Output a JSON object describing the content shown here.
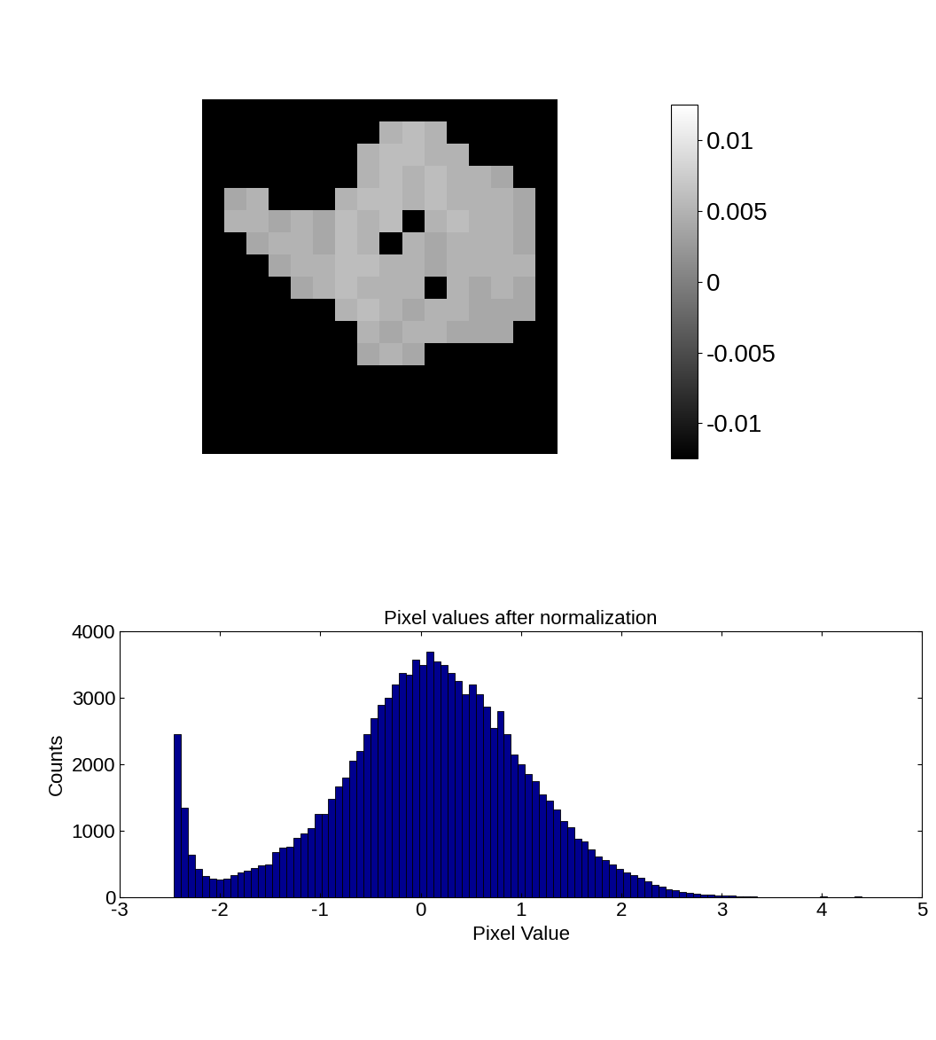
{
  "chart_data": [
    {
      "type": "heatmap",
      "cells": [
        [
          -0.0125,
          -0.0125,
          -0.0125,
          -0.0125,
          -0.0125,
          -0.0125,
          -0.0125,
          -0.0125,
          -0.0125,
          -0.0125,
          -0.0125,
          -0.0125,
          -0.0125,
          -0.0125,
          -0.0125,
          -0.0125
        ],
        [
          -0.0125,
          -0.0125,
          -0.0125,
          -0.0125,
          -0.0125,
          -0.0125,
          -0.0125,
          -0.0125,
          0.005,
          0.006,
          0.005,
          -0.0125,
          -0.0125,
          -0.0125,
          -0.0125,
          -0.0125
        ],
        [
          -0.0125,
          -0.0125,
          -0.0125,
          -0.0125,
          -0.0125,
          -0.0125,
          -0.0125,
          0.005,
          0.006,
          0.006,
          0.005,
          0.005,
          -0.0125,
          -0.0125,
          -0.0125,
          -0.0125
        ],
        [
          -0.0125,
          -0.0125,
          -0.0125,
          -0.0125,
          -0.0125,
          -0.0125,
          -0.0125,
          0.005,
          0.006,
          0.005,
          0.006,
          0.005,
          0.005,
          0.004,
          -0.0125,
          -0.0125
        ],
        [
          -0.0125,
          0.004,
          0.005,
          -0.0125,
          -0.0125,
          -0.0125,
          0.005,
          0.006,
          0.006,
          0.005,
          0.006,
          0.005,
          0.005,
          0.005,
          0.004,
          -0.0125
        ],
        [
          -0.0125,
          0.005,
          0.005,
          0.004,
          0.005,
          0.004,
          0.006,
          0.005,
          0.006,
          -0.0125,
          0.005,
          0.006,
          0.005,
          0.005,
          0.004,
          -0.0125
        ],
        [
          -0.0125,
          -0.0125,
          0.004,
          0.005,
          0.005,
          0.004,
          0.006,
          0.005,
          -0.0125,
          0.005,
          0.004,
          0.005,
          0.005,
          0.005,
          0.004,
          -0.0125
        ],
        [
          -0.0125,
          -0.0125,
          -0.0125,
          0.004,
          0.005,
          0.005,
          0.006,
          0.006,
          0.005,
          0.005,
          0.004,
          0.005,
          0.005,
          0.005,
          0.005,
          -0.0125
        ],
        [
          -0.0125,
          -0.0125,
          -0.0125,
          -0.0125,
          0.004,
          0.005,
          0.006,
          0.005,
          0.005,
          0.005,
          -0.0125,
          0.005,
          0.004,
          0.005,
          0.004,
          -0.0125
        ],
        [
          -0.0125,
          -0.0125,
          -0.0125,
          -0.0125,
          -0.0125,
          -0.0125,
          0.005,
          0.006,
          0.005,
          0.004,
          0.005,
          0.005,
          0.004,
          0.004,
          0.004,
          -0.0125
        ],
        [
          -0.0125,
          -0.0125,
          -0.0125,
          -0.0125,
          -0.0125,
          -0.0125,
          -0.0125,
          0.005,
          0.004,
          0.005,
          0.005,
          0.004,
          0.004,
          0.004,
          -0.0125,
          -0.0125
        ],
        [
          -0.0125,
          -0.0125,
          -0.0125,
          -0.0125,
          -0.0125,
          -0.0125,
          -0.0125,
          0.004,
          0.005,
          0.004,
          -0.0125,
          -0.0125,
          -0.0125,
          -0.0125,
          -0.0125,
          -0.0125
        ],
        [
          -0.0125,
          -0.0125,
          -0.0125,
          -0.0125,
          -0.0125,
          -0.0125,
          -0.0125,
          -0.0125,
          -0.0125,
          -0.0125,
          -0.0125,
          -0.0125,
          -0.0125,
          -0.0125,
          -0.0125,
          -0.0125
        ],
        [
          -0.0125,
          -0.0125,
          -0.0125,
          -0.0125,
          -0.0125,
          -0.0125,
          -0.0125,
          -0.0125,
          -0.0125,
          -0.0125,
          -0.0125,
          -0.0125,
          -0.0125,
          -0.0125,
          -0.0125,
          -0.0125
        ],
        [
          -0.0125,
          -0.0125,
          -0.0125,
          -0.0125,
          -0.0125,
          -0.0125,
          -0.0125,
          -0.0125,
          -0.0125,
          -0.0125,
          -0.0125,
          -0.0125,
          -0.0125,
          -0.0125,
          -0.0125,
          -0.0125
        ],
        [
          -0.0125,
          -0.0125,
          -0.0125,
          -0.0125,
          -0.0125,
          -0.0125,
          -0.0125,
          -0.0125,
          -0.0125,
          -0.0125,
          -0.0125,
          -0.0125,
          -0.0125,
          -0.0125,
          -0.0125,
          -0.0125
        ]
      ],
      "colorbar_lim": [
        -0.0125,
        0.0125
      ],
      "colorbar_ticks": [
        -0.01,
        -0.005,
        0,
        0.005,
        0.01
      ],
      "tick_labels": false
    },
    {
      "type": "histogram",
      "title": "Pixel values after normalization",
      "x_label": "Pixel Value",
      "y_label": "Counts",
      "bins": [
        -2.46,
        -2.39,
        -2.32,
        -2.25,
        -2.18,
        -2.11,
        -2.04,
        -1.97,
        -1.9,
        -1.83,
        -1.76,
        -1.69,
        -1.62,
        -1.55,
        -1.48,
        -1.41,
        -1.34,
        -1.27,
        -1.2,
        -1.13,
        -1.06,
        -0.99,
        -0.92,
        -0.85,
        -0.78,
        -0.71,
        -0.64,
        -0.57,
        -0.5,
        -0.43,
        -0.36,
        -0.29,
        -0.22,
        -0.15,
        -0.08,
        -0.01,
        0.06,
        0.13,
        0.2,
        0.27,
        0.34,
        0.41,
        0.48,
        0.55,
        0.62,
        0.69,
        0.76,
        0.83,
        0.9,
        0.97,
        1.04,
        1.11,
        1.18,
        1.25,
        1.32,
        1.39,
        1.46,
        1.53,
        1.6,
        1.67,
        1.74,
        1.81,
        1.88,
        1.95,
        2.02,
        2.09,
        2.16,
        2.23,
        2.3,
        2.37,
        2.44,
        2.51,
        2.58,
        2.65,
        2.72,
        2.79,
        2.86,
        2.93,
        3.0,
        3.07,
        3.14,
        3.21,
        3.28,
        3.35,
        3.42,
        3.49,
        3.56,
        3.63,
        3.7,
        3.77,
        3.84,
        3.91,
        3.98,
        4.05,
        4.12,
        4.19,
        4.26,
        4.33,
        4.4
      ],
      "values": [
        2450,
        1350,
        650,
        430,
        320,
        290,
        270,
        280,
        340,
        380,
        400,
        450,
        490,
        500,
        680,
        750,
        760,
        900,
        960,
        1040,
        1250,
        1250,
        1480,
        1670,
        1800,
        2050,
        2200,
        2450,
        2700,
        2900,
        3000,
        3200,
        3380,
        3350,
        3580,
        3500,
        3700,
        3550,
        3500,
        3380,
        3250,
        3050,
        3200,
        3050,
        2870,
        2550,
        2800,
        2450,
        2150,
        2000,
        1850,
        1750,
        1550,
        1450,
        1320,
        1150,
        1050,
        880,
        840,
        720,
        620,
        560,
        500,
        430,
        380,
        340,
        300,
        250,
        190,
        160,
        130,
        110,
        90,
        70,
        60,
        50,
        40,
        35,
        30,
        25,
        20,
        15,
        12,
        10,
        10,
        8,
        6,
        5,
        5,
        4,
        3,
        3,
        15,
        2,
        2,
        1,
        1,
        20
      ],
      "color": "#00008f",
      "xlim": [
        -3,
        5
      ],
      "xticks": [
        -3,
        -2,
        -1,
        0,
        1,
        2,
        3,
        4,
        5
      ],
      "ylim": [
        0,
        4000
      ],
      "yticks": [
        0,
        1000,
        2000,
        3000,
        4000
      ]
    }
  ]
}
